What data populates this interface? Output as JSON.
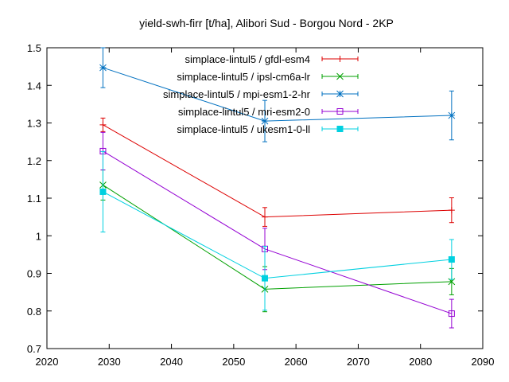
{
  "chart_data": {
    "type": "line",
    "title": "yield-swh-firr [t/ha], Alibori Sud - Borgou Nord - 2KP",
    "xlabel": "",
    "ylabel": "",
    "xlim": [
      2020,
      2090
    ],
    "ylim": [
      0.7,
      1.5
    ],
    "xticks": [
      2020,
      2030,
      2040,
      2050,
      2060,
      2070,
      2080,
      2090
    ],
    "yticks": [
      0.7,
      0.8,
      0.9,
      1.0,
      1.1,
      1.2,
      1.3,
      1.4,
      1.5
    ],
    "xtick_labels": [
      "2020",
      "2030",
      "2040",
      "2050",
      "2060",
      "2070",
      "2080",
      "2090"
    ],
    "ytick_labels": [
      "0.7",
      "0.8",
      "0.9",
      "1",
      "1.1",
      "1.2",
      "1.3",
      "1.4",
      "1.5"
    ],
    "grid": false,
    "legend_position": "top-right",
    "series": [
      {
        "name": "simplace-lintul5 / gfdl-esm4",
        "color": "#dd0000",
        "marker": "plus",
        "x": [
          2029,
          2055,
          2085
        ],
        "y": [
          1.295,
          1.05,
          1.068
        ],
        "err": [
          0.018,
          0.025,
          0.033
        ]
      },
      {
        "name": "simplace-lintul5 / ipsl-cm6a-lr",
        "color": "#00a000",
        "marker": "cross",
        "x": [
          2029,
          2055,
          2085
        ],
        "y": [
          1.135,
          0.858,
          0.878
        ],
        "err": [
          0.04,
          0.06,
          0.035
        ]
      },
      {
        "name": "simplace-lintul5 / mpi-esm1-2-hr",
        "color": "#0070c0",
        "marker": "star",
        "x": [
          2029,
          2055,
          2085
        ],
        "y": [
          1.447,
          1.305,
          1.32
        ],
        "err": [
          0.053,
          0.055,
          0.065
        ]
      },
      {
        "name": "simplace-lintul5 / mri-esm2-0",
        "color": "#9400d3",
        "marker": "square-open",
        "x": [
          2029,
          2055,
          2085
        ],
        "y": [
          1.225,
          0.965,
          0.793
        ],
        "err": [
          0.05,
          0.055,
          0.038
        ]
      },
      {
        "name": "simplace-lintul5 / ukesm1-0-ll",
        "color": "#00d0e0",
        "marker": "square-filled",
        "x": [
          2029,
          2055,
          2085
        ],
        "y": [
          1.117,
          0.887,
          0.937
        ],
        "err": [
          0.107,
          0.085,
          0.053
        ]
      }
    ]
  }
}
